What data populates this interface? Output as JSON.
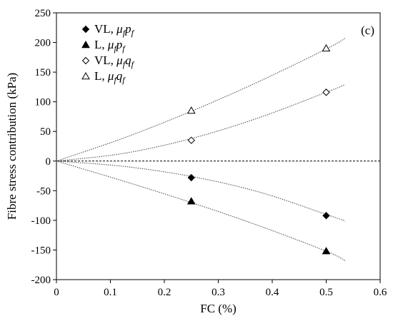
{
  "chart_data": {
    "type": "scatter",
    "panel_label": "(c)",
    "xlabel": "FC (%)",
    "ylabel": "Fibre stress contribution (kPa)",
    "xlim": [
      0,
      0.6
    ],
    "ylim": [
      -200,
      250
    ],
    "x_ticks": [
      "0",
      "0.1",
      "0.2",
      "0.3",
      "0.4",
      "0.5",
      "0.6"
    ],
    "y_ticks": [
      "-200",
      "-150",
      "-100",
      "-50",
      "0",
      "50",
      "100",
      "150",
      "200",
      "250"
    ],
    "x_tick_values": [
      0,
      0.1,
      0.2,
      0.3,
      0.4,
      0.5,
      0.6
    ],
    "y_tick_values": [
      -200,
      -150,
      -100,
      -50,
      0,
      50,
      100,
      150,
      200,
      250
    ],
    "zero_line": true,
    "legend_position": "top-left",
    "series": [
      {
        "name_main": "VL, ",
        "name_sym": "μ",
        "name_sub": "f",
        "name_var": "p",
        "name_sub2": "f",
        "marker": "diamond-filled",
        "x": [
          0,
          0.25,
          0.5
        ],
        "y": [
          0,
          -28,
          -92
        ],
        "trend_x": [
          0,
          0.125,
          0.25,
          0.375,
          0.5,
          0.535
        ],
        "trend_y": [
          0,
          -9,
          -26,
          -52,
          -90,
          -101
        ]
      },
      {
        "name_main": "L, ",
        "name_sym": "μ",
        "name_sub": "f",
        "name_var": "p",
        "name_sub2": "f",
        "marker": "triangle-filled",
        "x": [
          0,
          0.25,
          0.5
        ],
        "y": [
          0,
          -68,
          -152
        ],
        "trend_x": [
          0,
          0.125,
          0.25,
          0.375,
          0.5,
          0.535
        ],
        "trend_y": [
          0,
          -34,
          -70,
          -109,
          -152,
          -168
        ]
      },
      {
        "name_main": "VL, ",
        "name_sym": "μ",
        "name_sub": "f",
        "name_var": "q",
        "name_sub2": "f",
        "marker": "diamond-open",
        "x": [
          0,
          0.25,
          0.5
        ],
        "y": [
          0,
          35,
          116
        ],
        "trend_x": [
          0,
          0.125,
          0.25,
          0.375,
          0.5,
          0.535
        ],
        "trend_y": [
          0,
          13,
          38,
          73,
          116,
          129
        ]
      },
      {
        "name_main": "L, ",
        "name_sym": "μ",
        "name_sub": "f",
        "name_var": "q",
        "name_sub2": "f",
        "marker": "triangle-open",
        "x": [
          0,
          0.25,
          0.5
        ],
        "y": [
          0,
          85,
          190
        ],
        "trend_x": [
          0,
          0.125,
          0.25,
          0.375,
          0.5,
          0.535
        ],
        "trend_y": [
          0,
          39,
          84,
          134,
          189,
          207
        ]
      }
    ]
  }
}
